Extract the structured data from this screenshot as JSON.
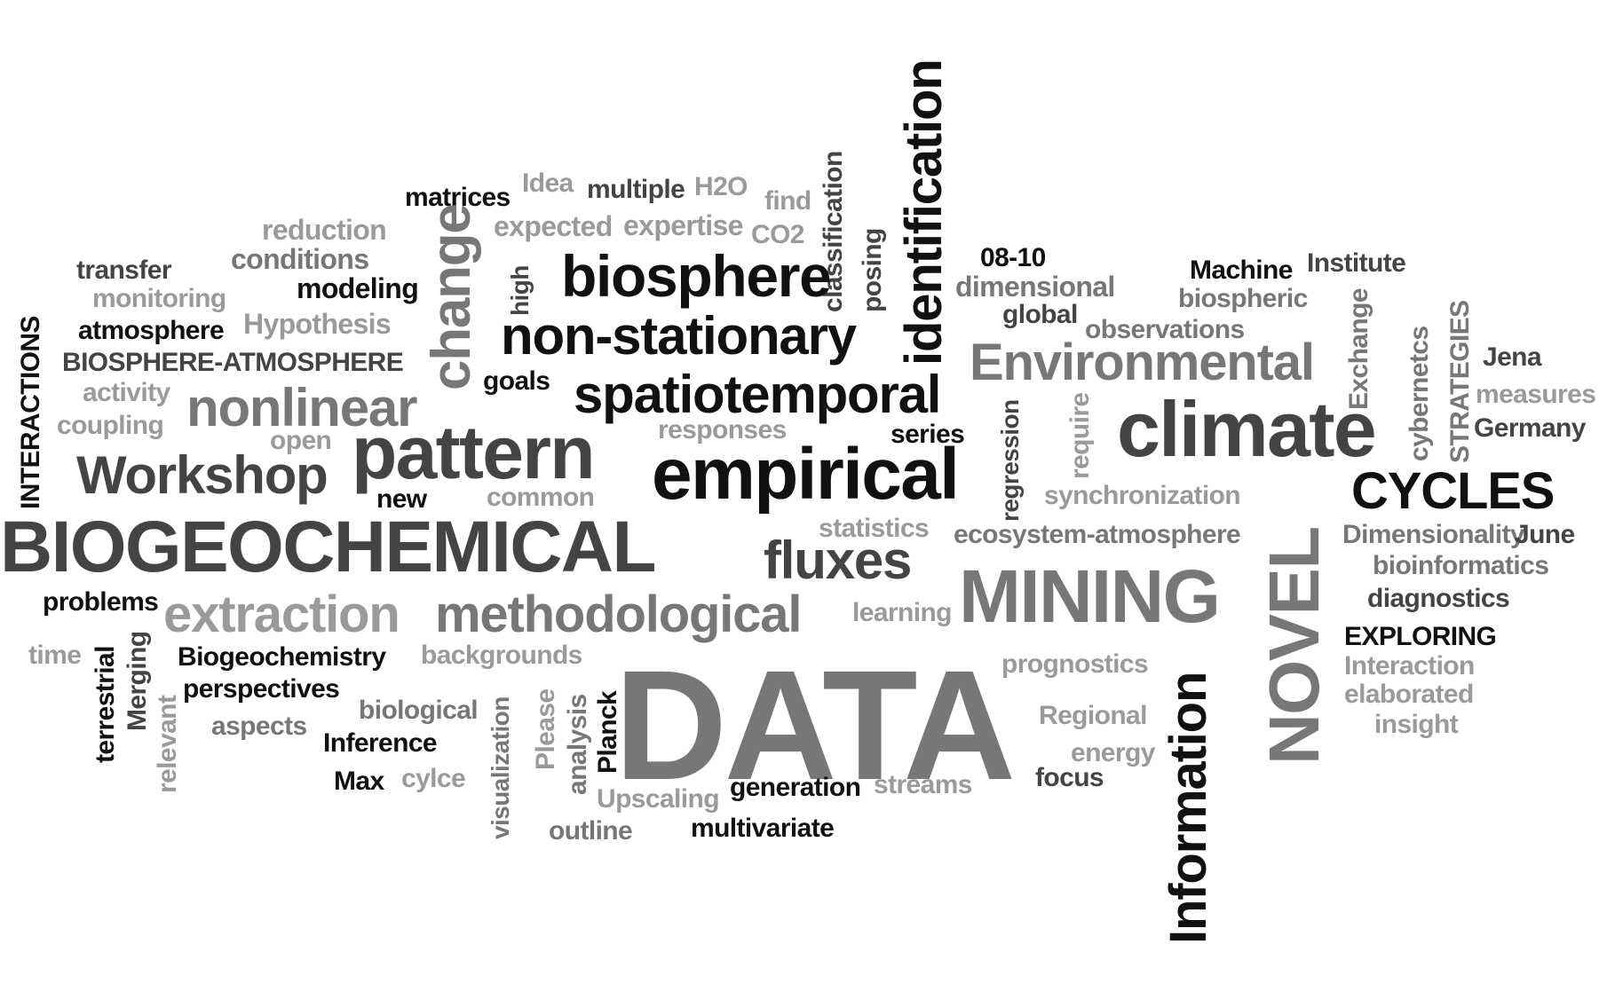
{
  "words": {
    "idea": "Idea",
    "matrices": "matrices",
    "multiple": "multiple",
    "h2o": "H2O",
    "find": "find",
    "classification": "classification",
    "identification": "identification",
    "reduction": "reduction",
    "expected": "expected",
    "expertise": "expertise",
    "co2": "CO2",
    "posing": "posing",
    "conditions": "conditions",
    "change": "change",
    "high": "high",
    "biosphere": "biosphere",
    "transfer": "transfer",
    "modeling": "modeling",
    "monitoring": "monitoring",
    "d0810": "08-10",
    "dimensional": "dimensional",
    "machine": "Machine",
    "institute": "Institute",
    "biospheric": "biospheric",
    "global": "global",
    "hypothesis": "Hypothesis",
    "atmosphere": "atmosphere",
    "nonstationary": "non-stationary",
    "exchange": "Exchange",
    "strategies": "STRATEGIES",
    "observations": "observations",
    "interactions": "INTERACTIONS",
    "biosphere_atmosphere": "BIOSPHERE-ATMOSPHERE",
    "environmental": "Environmental",
    "cybernetics": "cybernetcs",
    "jena": "Jena",
    "goals": "goals",
    "activity": "activity",
    "spatiotemporal": "spatiotemporal",
    "measures": "measures",
    "nonlinear": "nonlinear",
    "regression": "regression",
    "require": "require",
    "coupling": "coupling",
    "responses": "responses",
    "climate": "climate",
    "germany": "Germany",
    "open": "open",
    "series": "series",
    "pattern": "pattern",
    "workshop": "Workshop",
    "empirical": "empirical",
    "cycles": "CYCLES",
    "new": "new",
    "common": "common",
    "synchronization": "synchronization",
    "biogeochemical": "BIOGEOCHEMICAL",
    "statistics": "statistics",
    "ecosystem_atmosphere": "ecosystem-atmosphere",
    "novel": "NOVEL",
    "dimensionality": "Dimensionality",
    "june": "June",
    "fluxes": "fluxes",
    "mining": "MINING",
    "bioinformatics": "bioinformatics",
    "problems": "problems",
    "diagnostics": "diagnostics",
    "extraction": "extraction",
    "methodological": "methodological",
    "learning": "learning",
    "exploring": "EXPLORING",
    "time": "time",
    "merging": "Merging",
    "biogeochemistry": "Biogeochemistry",
    "backgrounds": "backgrounds",
    "prognostics": "prognostics",
    "information": "Information",
    "interaction": "Interaction",
    "terrestrial": "terrestrial",
    "perspectives": "perspectives",
    "data": "DATA",
    "elaborated": "elaborated",
    "biological": "biological",
    "please": "Please",
    "analysis": "analysis",
    "planck": "Planck",
    "regional": "Regional",
    "insight": "insight",
    "aspects": "aspects",
    "relevant": "relevant",
    "inference": "Inference",
    "visualization": "visualization",
    "energy": "energy",
    "max": "Max",
    "cycle": "cylce",
    "generation": "generation",
    "streams": "streams",
    "focus": "focus",
    "upscaling": "Upscaling",
    "outline": "outline",
    "multivariate": "multivariate"
  },
  "palette": {
    "black": "#111111",
    "dark_gray": "#444444",
    "mid_gray": "#777777",
    "light_gray": "#9a9a9a"
  }
}
